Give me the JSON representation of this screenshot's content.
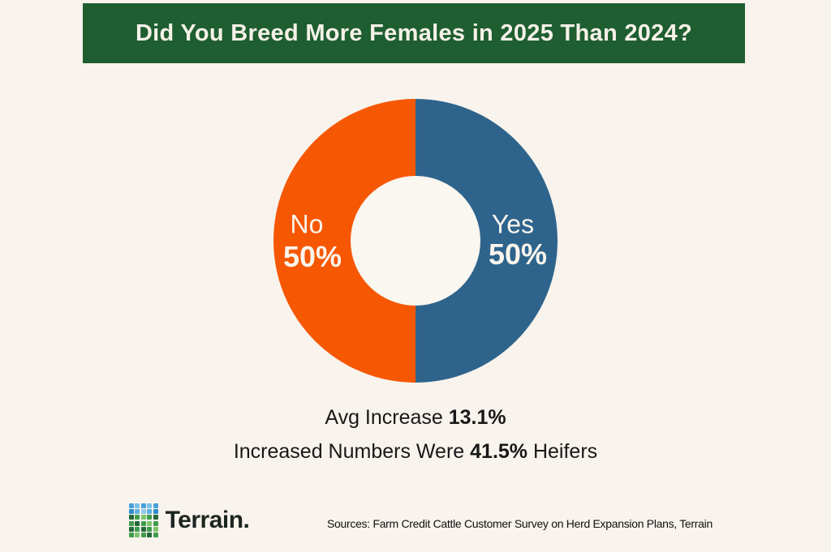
{
  "header": {
    "title": "Did You Breed More Females in 2025 Than 2024?",
    "bg_color": "#1e5e30",
    "text_color": "#f6f1e8"
  },
  "chart_data": {
    "type": "pie",
    "subtype": "donut",
    "title": "Did You Breed More Females in 2025 Than 2024?",
    "categories": [
      "Yes",
      "No"
    ],
    "values": [
      50,
      50
    ],
    "unit": "%",
    "colors": {
      "Yes": "#2e648c",
      "No": "#f65702"
    },
    "hole_color": "#faf6f0",
    "labels": [
      {
        "name": "Yes",
        "value_label": "50%"
      },
      {
        "name": "No",
        "value_label": "50%"
      }
    ],
    "annotations": [
      "Avg Increase 13.1%",
      "Increased Numbers Were 41.5% Heifers"
    ],
    "legend_position": "none"
  },
  "donut_labels": {
    "no_name": "No",
    "no_value": "50%",
    "yes_name": "Yes",
    "yes_value": "50%"
  },
  "stats": {
    "line1_prefix": "Avg Increase ",
    "line1_bold": "13.1%",
    "line2_prefix": "Increased Numbers Were ",
    "line2_bold": "41.5%",
    "line2_suffix": " Heifers"
  },
  "footer": {
    "brand": "Terrain.",
    "sources": "Sources: Farm Credit Cattle Customer Survey on Herd Expansion Plans, Terrain",
    "logo_colors": [
      "#47a1d9",
      "#7cc1e8",
      "#47a1d9",
      "#7cc1e8",
      "#47a1d9",
      "#2f8ccc",
      "#5fb0e0",
      "#8fcbe8",
      "#5fb0e0",
      "#2f8ccc",
      "#23683a",
      "#3f9c4c",
      "#7cc46d",
      "#3f9c4c",
      "#23683a",
      "#3f9c4c",
      "#23683a",
      "#3f9c4c",
      "#7cc46d",
      "#3f9c4c",
      "#23683a",
      "#3f9c4c",
      "#23683a",
      "#3f9c4c",
      "#7cc46d",
      "#3f9c4c",
      "#7cc46d",
      "#3f9c4c",
      "#23683a",
      "#3f9c4c"
    ]
  },
  "page": {
    "background": "#f8f3ec"
  }
}
